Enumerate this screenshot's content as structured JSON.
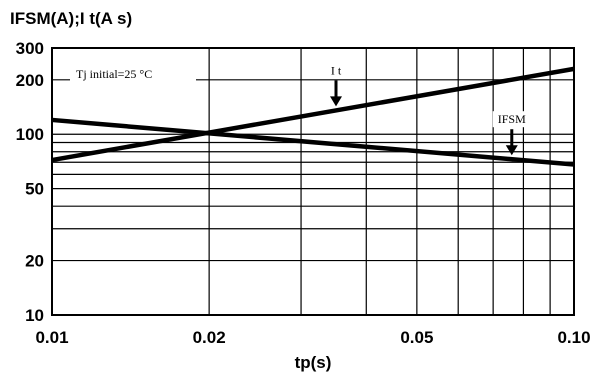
{
  "chart_data": {
    "type": "line",
    "ylabel": "IFSM(A);I t(A s)",
    "xlabel": "tp(s)",
    "x_scale": "log",
    "y_scale": "log",
    "xlim": [
      0.01,
      0.1
    ],
    "ylim": [
      10,
      300
    ],
    "x_ticks": [
      {
        "value": 0.01,
        "label": "0.01"
      },
      {
        "value": 0.02,
        "label": "0.02"
      },
      {
        "value": 0.05,
        "label": "0.05"
      },
      {
        "value": 0.1,
        "label": "0.10"
      }
    ],
    "y_ticks": [
      {
        "value": 10,
        "label": "10"
      },
      {
        "value": 20,
        "label": "20"
      },
      {
        "value": 50,
        "label": "50"
      },
      {
        "value": 100,
        "label": "100"
      },
      {
        "value": 200,
        "label": "200"
      },
      {
        "value": 300,
        "label": "300"
      }
    ],
    "x_grid": [
      0.01,
      0.02,
      0.03,
      0.04,
      0.05,
      0.06,
      0.07,
      0.08,
      0.09,
      0.1
    ],
    "y_grid": [
      10,
      20,
      30,
      40,
      50,
      60,
      70,
      80,
      90,
      100,
      200,
      300
    ],
    "grid": true,
    "series": [
      {
        "name": "I t",
        "x": [
          0.01,
          0.1
        ],
        "y": [
          72,
          230
        ]
      },
      {
        "name": "IFSM",
        "x": [
          0.01,
          0.1
        ],
        "y": [
          120,
          68
        ]
      }
    ],
    "annotations": [
      {
        "text": "Tj initial=25 °C"
      },
      {
        "text": "I t",
        "series": "I t",
        "arrow_x": 0.035
      },
      {
        "text": "IFSM",
        "series": "IFSM",
        "arrow_x": 0.076
      }
    ]
  }
}
